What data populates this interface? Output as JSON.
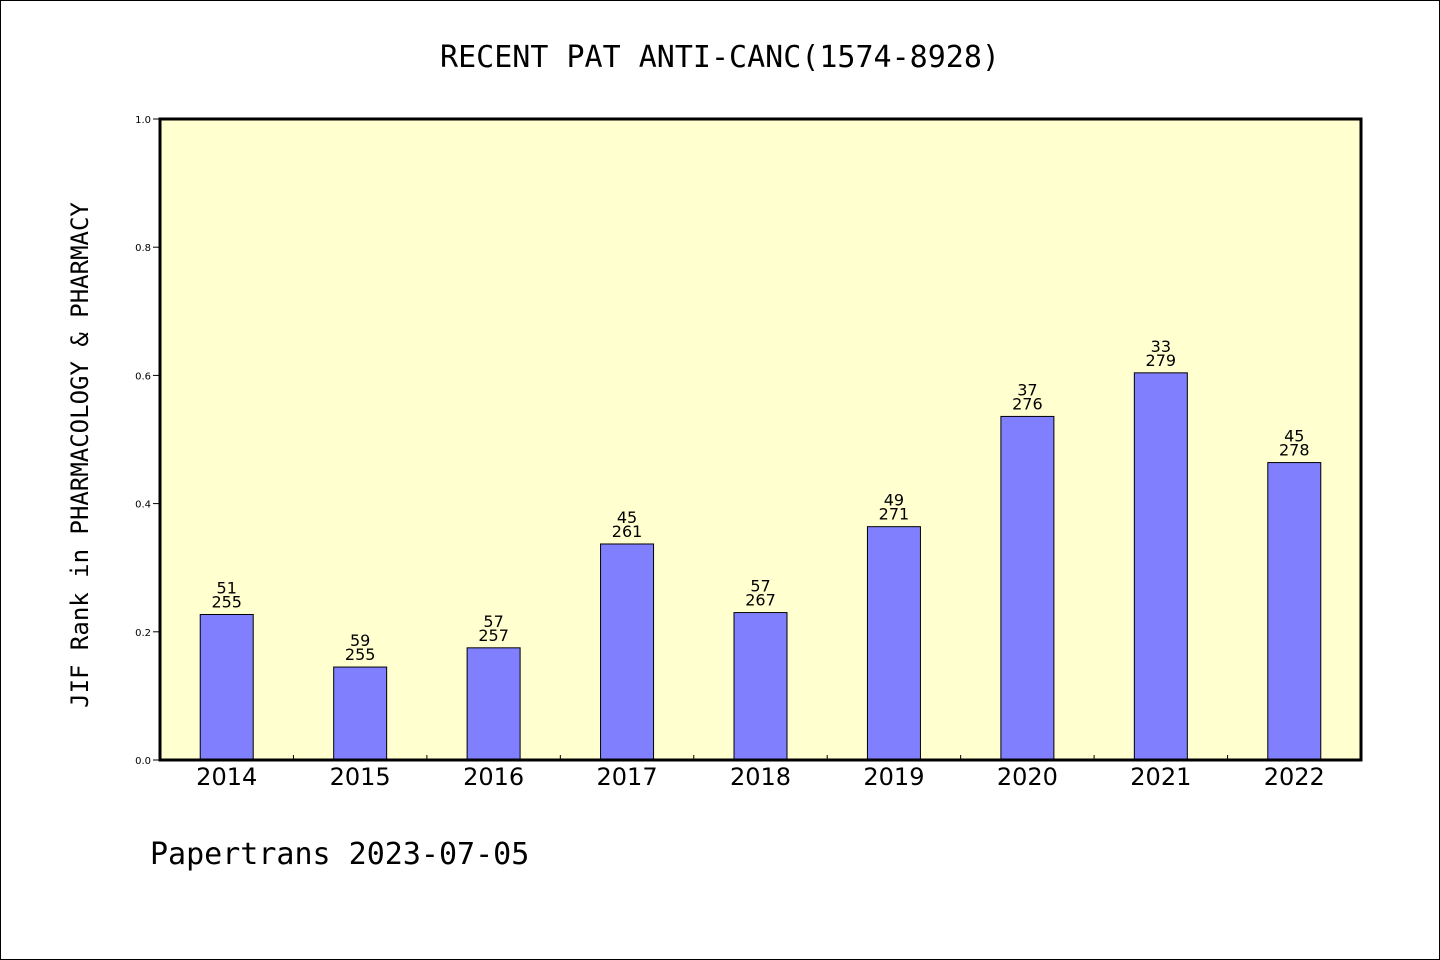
{
  "chart_data": {
    "type": "bar",
    "title": "RECENT PAT ANTI-CANC(1574-8928)",
    "ylabel": "JIF Rank in PHARMACOLOGY & PHARMACY",
    "xlabel": "",
    "categories": [
      "2014",
      "2015",
      "2016",
      "2017",
      "2018",
      "2019",
      "2020",
      "2021",
      "2022"
    ],
    "values": [
      0.227,
      0.145,
      0.175,
      0.337,
      0.23,
      0.364,
      0.536,
      0.604,
      0.464
    ],
    "rank": [
      "51",
      "59",
      "57",
      "45",
      "57",
      "49",
      "37",
      "33",
      "45"
    ],
    "total": [
      "255",
      "255",
      "257",
      "261",
      "267",
      "271",
      "276",
      "279",
      "278"
    ],
    "ylim": [
      0,
      1.0
    ],
    "yticks": [
      "0.0",
      "0.2",
      "0.4",
      "0.6",
      "0.8",
      "1.0"
    ],
    "grid": false,
    "colors": {
      "bar": "#8080ff",
      "plot_background": "#ffffd0",
      "axes": "#000000"
    }
  },
  "footer": "Papertrans 2023-07-05"
}
